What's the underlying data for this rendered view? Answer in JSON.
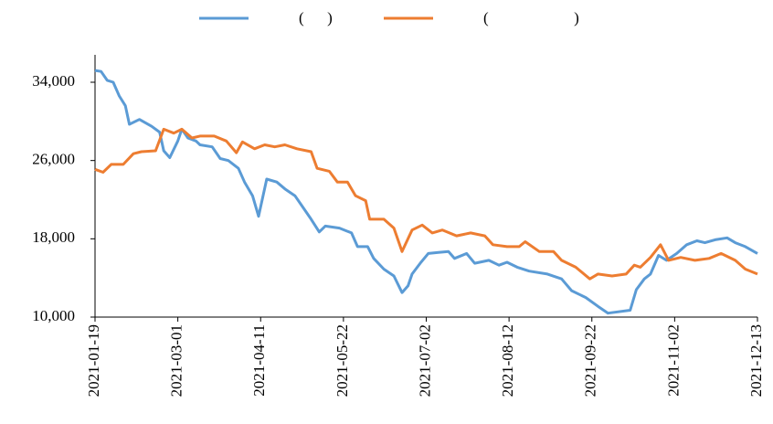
{
  "chart_data": {
    "type": "line",
    "xlim": [
      "2021-01-19",
      "2021-12-13"
    ],
    "xticks": [
      "2021-01-19",
      "2021-03-01",
      "2021-04-11",
      "2021-05-22",
      "2021-07-02",
      "2021-08-12",
      "2021-09-22",
      "2021-11-02",
      "2021-12-13"
    ],
    "ylim": [
      10000,
      34000
    ],
    "yticks": [
      {
        "value": 10000,
        "label": "10,000"
      },
      {
        "value": 18000,
        "label": "18,000"
      },
      {
        "value": 26000,
        "label": "26,000"
      },
      {
        "value": 34000,
        "label": "34,000"
      }
    ],
    "grid": false,
    "legend": "top",
    "series": [
      {
        "name": "(      )",
        "color": "#5b9bd5",
        "x": [
          "2021-01-19",
          "2021-01-22",
          "2021-01-25",
          "2021-01-28",
          "2021-01-31",
          "2021-02-03",
          "2021-02-05",
          "2021-02-10",
          "2021-02-16",
          "2021-02-20",
          "2021-02-22",
          "2021-02-25",
          "2021-03-01",
          "2021-03-03",
          "2021-03-06",
          "2021-03-10",
          "2021-03-12",
          "2021-03-18",
          "2021-03-22",
          "2021-03-26",
          "2021-03-31",
          "2021-04-03",
          "2021-04-07",
          "2021-04-10",
          "2021-04-14",
          "2021-04-19",
          "2021-04-23",
          "2021-04-28",
          "2021-05-01",
          "2021-05-06",
          "2021-05-10",
          "2021-05-13",
          "2021-05-20",
          "2021-05-26",
          "2021-05-29",
          "2021-06-03",
          "2021-06-06",
          "2021-06-11",
          "2021-06-16",
          "2021-06-20",
          "2021-06-23",
          "2021-06-25",
          "2021-06-29",
          "2021-07-03",
          "2021-07-08",
          "2021-07-13",
          "2021-07-16",
          "2021-07-22",
          "2021-07-26",
          "2021-08-02",
          "2021-08-07",
          "2021-08-11",
          "2021-08-16",
          "2021-08-22",
          "2021-08-31",
          "2021-09-07",
          "2021-09-12",
          "2021-09-19",
          "2021-09-25",
          "2021-09-30",
          "2021-10-11",
          "2021-10-14",
          "2021-10-18",
          "2021-10-21",
          "2021-10-25",
          "2021-10-29",
          "2021-11-03",
          "2021-11-08",
          "2021-11-13",
          "2021-11-17",
          "2021-11-22",
          "2021-11-28",
          "2021-12-02",
          "2021-12-07",
          "2021-12-13"
        ],
        "values": [
          35200,
          35100,
          34200,
          34000,
          32600,
          31600,
          29700,
          30200,
          29500,
          28900,
          27000,
          26300,
          28000,
          29200,
          28300,
          28000,
          27600,
          27400,
          26200,
          26000,
          25200,
          23800,
          22400,
          20300,
          24100,
          23800,
          23100,
          22400,
          21500,
          20000,
          18700,
          19300,
          19100,
          18600,
          17200,
          17200,
          16000,
          14900,
          14200,
          12500,
          13200,
          14400,
          15500,
          16500,
          16600,
          16700,
          16000,
          16500,
          15500,
          15800,
          15300,
          15600,
          15100,
          14700,
          14400,
          13900,
          12700,
          12000,
          11100,
          10400,
          10700,
          12800,
          13900,
          14400,
          16300,
          15800,
          16500,
          17400,
          17800,
          17600,
          17900,
          18100,
          17600,
          17200,
          16500
        ]
      },
      {
        "name": "(                      )",
        "color": "#ed7d31",
        "x": [
          "2021-01-19",
          "2021-01-23",
          "2021-01-27",
          "2021-02-02",
          "2021-02-07",
          "2021-02-11",
          "2021-02-18",
          "2021-02-22",
          "2021-02-27",
          "2021-03-03",
          "2021-03-08",
          "2021-03-12",
          "2021-03-19",
          "2021-03-25",
          "2021-03-30",
          "2021-04-02",
          "2021-04-08",
          "2021-04-13",
          "2021-04-18",
          "2021-04-23",
          "2021-04-29",
          "2021-05-06",
          "2021-05-09",
          "2021-05-15",
          "2021-05-19",
          "2021-05-24",
          "2021-05-28",
          "2021-06-02",
          "2021-06-04",
          "2021-06-11",
          "2021-06-16",
          "2021-06-20",
          "2021-06-25",
          "2021-06-30",
          "2021-07-05",
          "2021-07-10",
          "2021-07-17",
          "2021-07-24",
          "2021-07-31",
          "2021-08-04",
          "2021-08-11",
          "2021-08-17",
          "2021-08-20",
          "2021-08-27",
          "2021-09-03",
          "2021-09-07",
          "2021-09-14",
          "2021-09-21",
          "2021-09-25",
          "2021-10-02",
          "2021-10-09",
          "2021-10-13",
          "2021-10-16",
          "2021-10-21",
          "2021-10-26",
          "2021-10-30",
          "2021-11-05",
          "2021-11-12",
          "2021-11-19",
          "2021-11-25",
          "2021-12-02",
          "2021-12-07",
          "2021-12-13"
        ],
        "values": [
          25100,
          24800,
          25600,
          25600,
          26700,
          26900,
          27000,
          29200,
          28800,
          29200,
          28300,
          28500,
          28500,
          28000,
          26800,
          27900,
          27200,
          27600,
          27400,
          27600,
          27200,
          26900,
          25200,
          24900,
          23800,
          23800,
          22400,
          21900,
          20000,
          20000,
          19100,
          16700,
          18900,
          19400,
          18600,
          18900,
          18300,
          18600,
          18300,
          17400,
          17200,
          17200,
          17700,
          16700,
          16700,
          15800,
          15100,
          13900,
          14400,
          14200,
          14400,
          15300,
          15100,
          16100,
          17400,
          15800,
          16100,
          15800,
          16000,
          16500,
          15800,
          14900,
          14400
        ]
      }
    ]
  }
}
